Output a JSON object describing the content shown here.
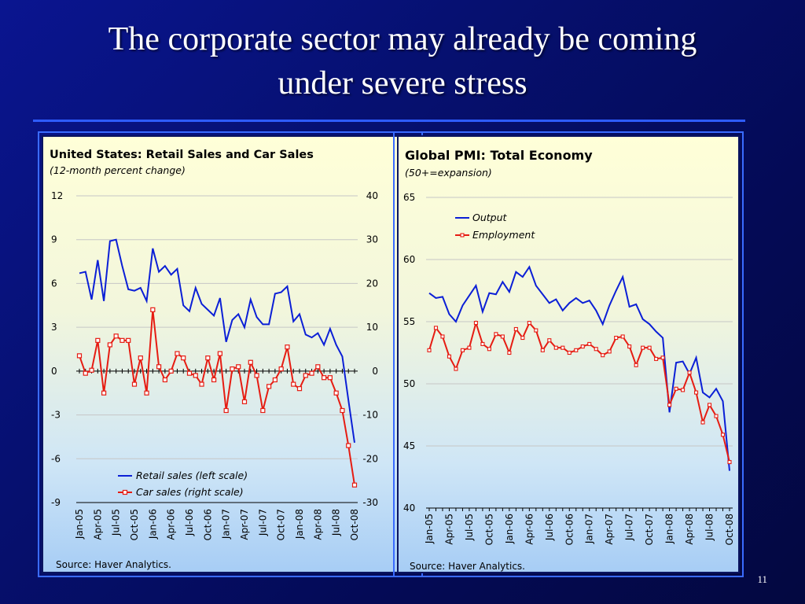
{
  "slide": {
    "title_line1": "The corporate sector may already be coming",
    "title_line2": "under severe stress",
    "page_number": "11"
  },
  "colors": {
    "blue_series": "#0b1fd6",
    "red_series": "#e61c12",
    "background": "#061070"
  },
  "chart_data": [
    {
      "type": "line",
      "title": "United States: Retail Sales and Car Sales",
      "subtitle": "(12-month percent change)",
      "source": "Source: Haver Analytics.",
      "tick_labels_x": [
        "Jan-05",
        "Apr-05",
        "Jul-05",
        "Oct-05",
        "Jan-06",
        "Apr-06",
        "Jul-06",
        "Oct-06",
        "Jan-07",
        "Apr-07",
        "Jul-07",
        "Oct-07",
        "Jan-08",
        "Apr-08",
        "Jul-08",
        "Oct-08"
      ],
      "x_start": "Jan-05",
      "x_end": "Oct-08",
      "ylim_left": [
        -9,
        12
      ],
      "yticks_left": [
        "12",
        "9",
        "6",
        "3",
        "0",
        "-3",
        "-6",
        "-9"
      ],
      "ylim_right": [
        -30,
        40
      ],
      "yticks_right": [
        "40",
        "30",
        "20",
        "10",
        "0",
        "-10",
        "-20",
        "-30"
      ],
      "legend_position": "lower-center",
      "series": [
        {
          "name": "Retail sales (left scale)",
          "axis": "left",
          "values": [
            6.7,
            6.8,
            4.9,
            7.6,
            4.8,
            8.9,
            9.0,
            7.2,
            5.6,
            5.5,
            5.7,
            4.8,
            8.4,
            6.8,
            7.2,
            6.6,
            7.0,
            4.5,
            4.1,
            5.7,
            4.6,
            4.2,
            3.8,
            5.0,
            2.0,
            3.5,
            3.9,
            3.0,
            4.9,
            3.7,
            3.2,
            3.2,
            5.3,
            5.4,
            5.8,
            3.4,
            3.9,
            2.5,
            2.3,
            2.6,
            1.8,
            2.9,
            1.8,
            1.0,
            -2.0,
            -4.9
          ]
        },
        {
          "name": "Car sales (right scale)",
          "axis": "right",
          "values": [
            3.5,
            -0.5,
            0.2,
            7,
            -5,
            6,
            8,
            7,
            7,
            -3,
            3,
            -5,
            14,
            1,
            -2,
            0,
            4,
            3,
            -0.5,
            -1,
            -3,
            3,
            -2,
            4,
            -9,
            0.5,
            1,
            -7,
            2,
            -1,
            -9,
            -3.5,
            -2,
            0.5,
            5.5,
            -3,
            -4,
            -1,
            -0.5,
            1,
            -1.5,
            -1.5,
            -5,
            -9,
            -17,
            -26
          ]
        }
      ]
    },
    {
      "type": "line",
      "title": "Global PMI: Total Economy",
      "subtitle": "(50+=expansion)",
      "source": "Source: Haver Analytics.",
      "tick_labels_x": [
        "Jan-05",
        "Apr-05",
        "Jul-05",
        "Oct-05",
        "Jan-06",
        "Apr-06",
        "Jul-06",
        "Oct-06",
        "Jan-07",
        "Apr-07",
        "Jul-07",
        "Oct-07",
        "Jan-08",
        "Apr-08",
        "Jul-08",
        "Oct-08"
      ],
      "x_start": "Jan-05",
      "x_end": "Oct-08",
      "ylim": [
        40,
        65
      ],
      "yticks": [
        "65",
        "60",
        "55",
        "50",
        "45",
        "40"
      ],
      "legend_position": "upper-left",
      "series": [
        {
          "name": "Output",
          "values": [
            57.3,
            56.9,
            57.0,
            55.6,
            55.0,
            56.3,
            57.1,
            57.9,
            55.8,
            57.3,
            57.2,
            58.2,
            57.4,
            59.0,
            58.6,
            59.4,
            57.9,
            57.2,
            56.5,
            56.8,
            55.9,
            56.5,
            56.9,
            56.5,
            56.7,
            55.9,
            54.8,
            56.3,
            57.5,
            58.6,
            56.2,
            56.4,
            55.2,
            54.8,
            54.2,
            53.7,
            47.7,
            51.7,
            51.8,
            50.8,
            52.1,
            49.3,
            48.9,
            49.6,
            48.6,
            43.0
          ]
        },
        {
          "name": "Employment",
          "values": [
            52.7,
            54.5,
            53.8,
            52.2,
            51.2,
            52.7,
            52.9,
            54.9,
            53.2,
            52.8,
            54.0,
            53.8,
            52.5,
            54.4,
            53.7,
            54.9,
            54.3,
            52.7,
            53.5,
            52.9,
            52.9,
            52.5,
            52.7,
            53.0,
            53.2,
            52.8,
            52.3,
            52.6,
            53.7,
            53.8,
            53.0,
            51.5,
            52.9,
            52.9,
            52.0,
            52.1,
            48.3,
            49.6,
            49.5,
            50.9,
            49.3,
            46.9,
            48.3,
            47.4,
            45.9,
            43.7
          ]
        }
      ]
    }
  ]
}
